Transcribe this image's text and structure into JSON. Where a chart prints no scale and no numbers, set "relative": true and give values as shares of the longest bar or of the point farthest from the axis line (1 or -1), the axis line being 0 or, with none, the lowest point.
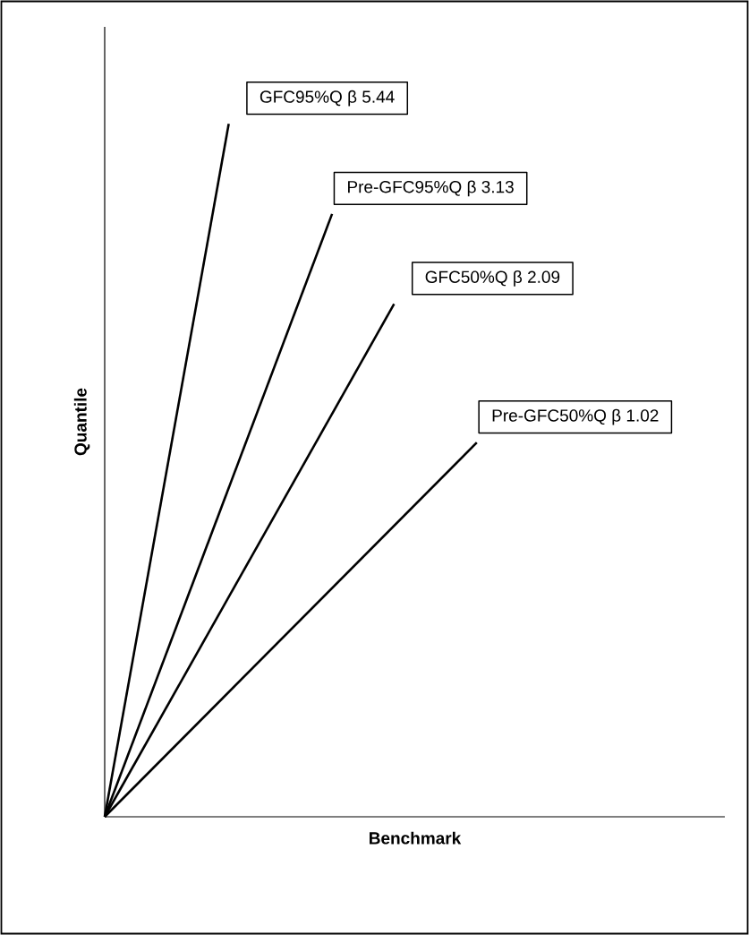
{
  "chart_data": {
    "type": "line",
    "relative": true,
    "xlabel": "Benchmark",
    "ylabel": "Quantile",
    "categories": [
      null,
      null,
      null,
      null,
      null,
      null,
      null,
      null,
      null,
      null,
      null,
      null,
      null,
      null,
      null,
      null,
      null,
      null,
      null,
      null,
      null,
      null,
      null,
      null,
      null,
      null,
      null,
      null,
      null,
      null,
      null
    ],
    "series": [
      {
        "name": "GFC95%Q β 5.44",
        "color": "#000000",
        "values": [
          0,
          null,
          null,
          null,
          null,
          null,
          1,
          null,
          null,
          null,
          null,
          null,
          null,
          null,
          null,
          null,
          null,
          null,
          null,
          null,
          null,
          null,
          null,
          null,
          null,
          null,
          null,
          null,
          null,
          null,
          null
        ]
      },
      {
        "name": "Pre-GFC95%Q β 3.13",
        "color": "#000000",
        "values": [
          0,
          null,
          null,
          null,
          null,
          null,
          null,
          null,
          null,
          null,
          null,
          0.87,
          null,
          null,
          null,
          null,
          null,
          null,
          null,
          null,
          null,
          null,
          null,
          null,
          null,
          null,
          null,
          null,
          null,
          null,
          null
        ]
      },
      {
        "name": "GFC50%Q β 2.09",
        "color": "#000000",
        "values": [
          0,
          null,
          null,
          null,
          null,
          null,
          null,
          null,
          null,
          null,
          null,
          null,
          null,
          null,
          0.74,
          null,
          null,
          null,
          null,
          null,
          null,
          null,
          null,
          null,
          null,
          null,
          null,
          null,
          null,
          null,
          null
        ]
      },
      {
        "name": "Pre-GFC50%Q β 1.02",
        "color": "#000000",
        "values": [
          0,
          null,
          null,
          null,
          null,
          null,
          null,
          null,
          null,
          null,
          null,
          null,
          null,
          null,
          null,
          null,
          null,
          null,
          0.54,
          null,
          null,
          null,
          null,
          null,
          null,
          null,
          null,
          null,
          null,
          null,
          null
        ]
      }
    ]
  }
}
